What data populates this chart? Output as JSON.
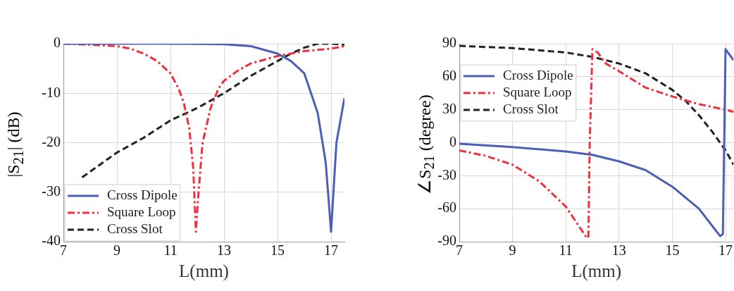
{
  "chart_data": [
    {
      "type": "line",
      "xlabel": "L(mm)",
      "ylabel": "|S$_{21}$| (dB)",
      "xlim": [
        7,
        17.5
      ],
      "xticks": [
        7,
        9,
        11,
        13,
        15,
        17
      ],
      "ylim": [
        -40,
        0
      ],
      "yticks": [
        -40,
        -30,
        -20,
        -10,
        0
      ],
      "grid": true,
      "legend": "bottom left",
      "marker": "none",
      "series": [
        {
          "name": "Cross Dipole",
          "color": "#4a5fb5",
          "line_style": "solid",
          "x": [
            7,
            9,
            11,
            13,
            14,
            15,
            15.5,
            16,
            16.5,
            16.8,
            17,
            17.2,
            17.5
          ],
          "values": [
            0,
            0,
            0,
            -0.1,
            -0.5,
            -2,
            -3.5,
            -6,
            -14,
            -24,
            -38,
            -20,
            -11
          ]
        },
        {
          "name": "Square Loop",
          "color": "#f0303c",
          "line_style": "dashdot",
          "x": [
            7,
            8,
            9,
            9.5,
            10,
            10.5,
            11,
            11.3,
            11.5,
            11.7,
            11.85,
            11.95,
            12.05,
            12.2,
            12.5,
            12.8,
            13,
            13.5,
            14,
            15,
            16,
            17,
            17.5
          ],
          "values": [
            0,
            -0.2,
            -0.5,
            -1,
            -2,
            -3.5,
            -6,
            -9,
            -12,
            -17,
            -25,
            -38,
            -30,
            -20,
            -13,
            -9,
            -7.5,
            -5.5,
            -4,
            -2.5,
            -1.5,
            -1,
            -0.5
          ]
        },
        {
          "name": "Cross Slot",
          "color": "#222222",
          "line_style": "dashed",
          "x": [
            7.7,
            9,
            10,
            11,
            12,
            13,
            14,
            15,
            15.5,
            16,
            16.5,
            17,
            17.5
          ],
          "values": [
            -27,
            -22,
            -19,
            -15.5,
            -13,
            -10,
            -6.5,
            -3.5,
            -2,
            -0.8,
            0,
            0,
            -0.2
          ]
        }
      ]
    },
    {
      "type": "line",
      "xlabel": "L(mm)",
      "ylabel": "∠S$_{21}$ (degree)",
      "xlim": [
        7,
        17.3
      ],
      "xticks": [
        7,
        9,
        11,
        13,
        15,
        17
      ],
      "ylim": [
        -90,
        90
      ],
      "yticks": [
        -90,
        -60,
        -30,
        0,
        30,
        60,
        90
      ],
      "grid": true,
      "legend": "top left",
      "marker": "none",
      "series": [
        {
          "name": "Cross Dipole",
          "color": "#4a5fb5",
          "line_style": "solid",
          "x": [
            7,
            9,
            11,
            12,
            13,
            14,
            15,
            16,
            16.8,
            16.9,
            17,
            17.3
          ],
          "values": [
            -1,
            -4,
            -8,
            -11,
            -17,
            -25,
            -40,
            -60,
            -85,
            -83,
            85,
            75
          ]
        },
        {
          "name": "Square Loop",
          "color": "#f0303c",
          "line_style": "dashdot",
          "x": [
            7,
            8,
            9,
            10,
            11,
            11.8,
            11.85,
            11.9,
            12,
            12.2,
            12.5,
            13,
            14,
            15,
            16,
            17,
            17.3
          ],
          "values": [
            -7,
            -12,
            -20,
            -35,
            -58,
            -87,
            -85,
            0,
            85,
            82,
            72,
            65,
            50,
            42,
            35,
            30,
            28
          ]
        },
        {
          "name": "Cross Slot",
          "color": "#222222",
          "line_style": "dashed",
          "x": [
            7,
            9,
            11,
            12,
            13,
            14,
            15,
            15.5,
            16,
            16.5,
            17,
            17.3
          ],
          "values": [
            88,
            86,
            82,
            78,
            72,
            63,
            48,
            38,
            25,
            10,
            -7,
            -20
          ]
        }
      ]
    }
  ]
}
